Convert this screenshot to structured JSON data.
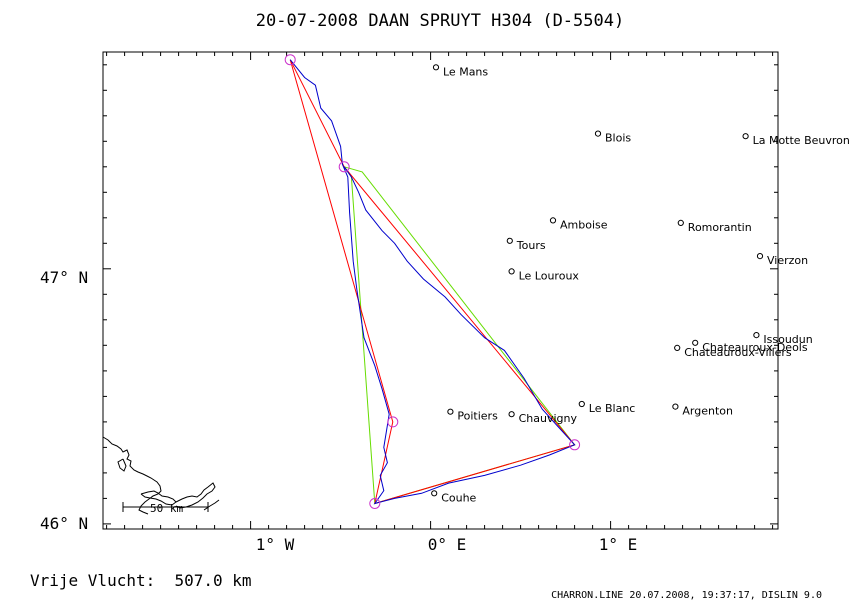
{
  "header": {
    "title": "20-07-2008   DAAN SPRUYT   H304 (D-5504)"
  },
  "axes": {
    "y_labels": [
      {
        "text": "47° N",
        "lat": 47
      },
      {
        "text": "46° N",
        "lat": 46
      }
    ],
    "x_labels": [
      {
        "text": "1° W",
        "lon": -1
      },
      {
        "text": "0° E",
        "lon": 0
      },
      {
        "text": "1° E",
        "lon": 1
      }
    ]
  },
  "cities": [
    {
      "name": "Le Mans",
      "lon": 0.03,
      "lat": 47.79
    },
    {
      "name": "Blois",
      "lon": 0.93,
      "lat": 47.53
    },
    {
      "name": "La Motte Beuvron",
      "lon": 1.75,
      "lat": 47.52
    },
    {
      "name": "Amboise",
      "lon": 0.68,
      "lat": 47.19
    },
    {
      "name": "Romorantin",
      "lon": 1.39,
      "lat": 47.18
    },
    {
      "name": "Tours",
      "lon": 0.44,
      "lat": 47.11
    },
    {
      "name": "Vierzon",
      "lon": 1.83,
      "lat": 47.05
    },
    {
      "name": "Le Louroux",
      "lon": 0.45,
      "lat": 46.99
    },
    {
      "name": "Issoudun",
      "lon": 1.81,
      "lat": 46.74
    },
    {
      "name": "Chateauroux-Deols",
      "lon": 1.47,
      "lat": 46.71
    },
    {
      "name": "Chateauroux-Villers",
      "lon": 1.37,
      "lat": 46.69
    },
    {
      "name": "Le Blanc",
      "lon": 0.84,
      "lat": 46.47
    },
    {
      "name": "Argenton",
      "lon": 1.36,
      "lat": 46.46
    },
    {
      "name": "Poitiers",
      "lon": 0.11,
      "lat": 46.44
    },
    {
      "name": "Chauvigny",
      "lon": 0.45,
      "lat": 46.43
    },
    {
      "name": "Couhe",
      "lon": 0.02,
      "lat": 46.12
    }
  ],
  "turnpoints": [
    {
      "lon": -0.78,
      "lat": 47.82
    },
    {
      "lon": -0.48,
      "lat": 47.4
    },
    {
      "lon": 0.8,
      "lat": 46.31
    },
    {
      "lon": -0.31,
      "lat": 46.08
    },
    {
      "lon": -0.21,
      "lat": 46.4
    }
  ],
  "routes": {
    "red": [
      {
        "lon": -0.78,
        "lat": 47.82
      },
      {
        "lon": -0.48,
        "lat": 47.4
      },
      {
        "lon": 0.8,
        "lat": 46.31
      },
      {
        "lon": -0.31,
        "lat": 46.08
      },
      {
        "lon": -0.21,
        "lat": 46.4
      },
      {
        "lon": -0.78,
        "lat": 47.82
      }
    ],
    "green": [
      {
        "lon": -0.48,
        "lat": 47.4
      },
      {
        "lon": -0.38,
        "lat": 47.38
      },
      {
        "lon": 0.8,
        "lat": 46.31
      },
      {
        "lon": -0.31,
        "lat": 46.08
      },
      {
        "lon": -0.44,
        "lat": 47.36
      },
      {
        "lon": -0.48,
        "lat": 47.4
      }
    ],
    "track": [
      {
        "lon": -0.78,
        "lat": 47.82
      },
      {
        "lon": -0.7,
        "lat": 47.75
      },
      {
        "lon": -0.64,
        "lat": 47.72
      },
      {
        "lon": -0.61,
        "lat": 47.63
      },
      {
        "lon": -0.55,
        "lat": 47.58
      },
      {
        "lon": -0.5,
        "lat": 47.48
      },
      {
        "lon": -0.49,
        "lat": 47.41
      },
      {
        "lon": -0.46,
        "lat": 47.36
      },
      {
        "lon": -0.45,
        "lat": 47.22
      },
      {
        "lon": -0.43,
        "lat": 47.03
      },
      {
        "lon": -0.41,
        "lat": 46.92
      },
      {
        "lon": -0.37,
        "lat": 46.73
      },
      {
        "lon": -0.31,
        "lat": 46.62
      },
      {
        "lon": -0.27,
        "lat": 46.53
      },
      {
        "lon": -0.23,
        "lat": 46.43
      },
      {
        "lon": -0.26,
        "lat": 46.3
      },
      {
        "lon": -0.24,
        "lat": 46.24
      },
      {
        "lon": -0.28,
        "lat": 46.19
      },
      {
        "lon": -0.26,
        "lat": 46.13
      },
      {
        "lon": -0.31,
        "lat": 46.08
      },
      {
        "lon": -0.2,
        "lat": 46.1
      },
      {
        "lon": -0.05,
        "lat": 46.12
      },
      {
        "lon": 0.1,
        "lat": 46.16
      },
      {
        "lon": 0.3,
        "lat": 46.19
      },
      {
        "lon": 0.5,
        "lat": 46.23
      },
      {
        "lon": 0.66,
        "lat": 46.27
      },
      {
        "lon": 0.8,
        "lat": 46.31
      },
      {
        "lon": 0.71,
        "lat": 46.38
      },
      {
        "lon": 0.62,
        "lat": 46.45
      },
      {
        "lon": 0.52,
        "lat": 46.57
      },
      {
        "lon": 0.41,
        "lat": 46.68
      },
      {
        "lon": 0.3,
        "lat": 46.73
      },
      {
        "lon": 0.17,
        "lat": 46.82
      },
      {
        "lon": 0.08,
        "lat": 46.89
      },
      {
        "lon": -0.04,
        "lat": 46.96
      },
      {
        "lon": -0.13,
        "lat": 47.03
      },
      {
        "lon": -0.2,
        "lat": 47.1
      },
      {
        "lon": -0.27,
        "lat": 47.15
      },
      {
        "lon": -0.36,
        "lat": 47.23
      },
      {
        "lon": -0.4,
        "lat": 47.3
      },
      {
        "lon": -0.44,
        "lat": 47.36
      },
      {
        "lon": -0.48,
        "lat": 47.4
      }
    ]
  },
  "map_bounds": {
    "lon_min": -1.82,
    "lon_max": 1.93,
    "lat_min": 45.98,
    "lat_max": 47.85
  },
  "colors": {
    "red_route": "#ff0000",
    "green_route": "#66dd00",
    "track": "#0000cc",
    "turnpoint": "#cc33cc",
    "coast": "#000000"
  },
  "footer": {
    "distance_label": "Vrije Vlucht:  507.0 km",
    "credit": "CHARRON.LINE 20.07.2008, 19:37:17, DISLIN 9.0"
  },
  "scale_bar": {
    "label": "50 km"
  }
}
